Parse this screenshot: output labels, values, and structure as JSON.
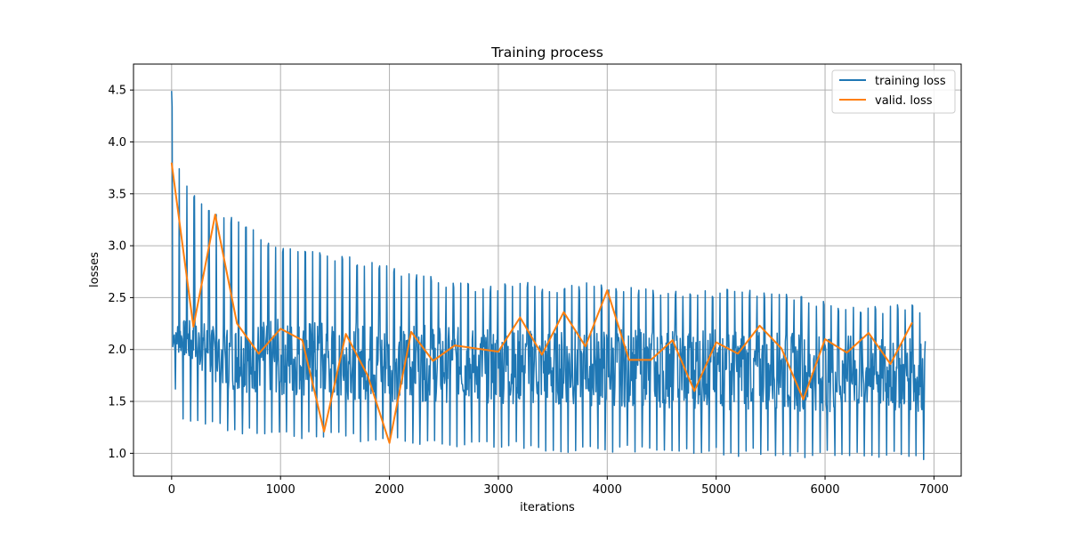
{
  "chart_data": {
    "type": "line",
    "title": "Training process",
    "xlabel": "iterations",
    "ylabel": "losses",
    "xlim": [
      -350,
      7250
    ],
    "ylim": [
      0.78,
      4.75
    ],
    "x_ticks": [
      0,
      1000,
      2000,
      3000,
      4000,
      5000,
      6000,
      7000
    ],
    "x_tick_labels": [
      "0",
      "1000",
      "2000",
      "3000",
      "4000",
      "5000",
      "6000",
      "7000"
    ],
    "y_ticks": [
      1.0,
      1.5,
      2.0,
      2.5,
      3.0,
      3.5,
      4.0,
      4.5
    ],
    "y_tick_labels": [
      "1.0",
      "1.5",
      "2.0",
      "2.5",
      "3.0",
      "3.5",
      "4.0",
      "4.5"
    ],
    "grid": true,
    "legend_position": "top-right",
    "series": [
      {
        "name": "training loss",
        "color": "#1f77b4",
        "note_style": "dense oscillation between envelope bounds",
        "upper_envelope": {
          "x": [
            0,
            20,
            100,
            200,
            300,
            400,
            500,
            600,
            700,
            800,
            900,
            1000,
            1200,
            1400,
            1600,
            1800,
            2000,
            2200,
            2400,
            2600,
            2800,
            3000,
            3200,
            3400,
            3600,
            3800,
            4000,
            4200,
            4400,
            4600,
            4800,
            5000,
            5200,
            5400,
            5600,
            5800,
            6000,
            6200,
            6400,
            6600,
            6800,
            6920
          ],
          "values": [
            4.53,
            3.95,
            3.68,
            3.5,
            3.38,
            3.33,
            3.3,
            3.28,
            3.2,
            3.12,
            3.07,
            3.02,
            2.97,
            2.95,
            2.9,
            2.85,
            2.82,
            2.75,
            2.7,
            2.66,
            2.63,
            2.63,
            2.67,
            2.62,
            2.63,
            2.65,
            2.64,
            2.6,
            2.58,
            2.56,
            2.57,
            2.58,
            2.6,
            2.55,
            2.55,
            2.52,
            2.46,
            2.41,
            2.42,
            2.43,
            2.44,
            2.4
          ]
        },
        "lower_envelope": {
          "x": [
            0,
            20,
            100,
            200,
            300,
            400,
            500,
            600,
            700,
            800,
            900,
            1000,
            1200,
            1400,
            1600,
            1800,
            2000,
            2200,
            2400,
            2600,
            2800,
            3000,
            3200,
            3400,
            3600,
            3800,
            4000,
            4200,
            4400,
            4600,
            4800,
            5000,
            5200,
            5400,
            5600,
            5800,
            6000,
            6200,
            6400,
            6600,
            6800,
            6920
          ],
          "values": [
            2.3,
            1.6,
            1.33,
            1.28,
            1.25,
            1.22,
            1.2,
            1.18,
            1.17,
            1.16,
            1.15,
            1.15,
            1.14,
            1.13,
            1.12,
            1.1,
            1.09,
            1.08,
            1.07,
            1.06,
            1.06,
            1.05,
            1.04,
            1.0,
            0.99,
            0.99,
            1.0,
            1.0,
            0.99,
            0.98,
            0.98,
            0.98,
            0.97,
            0.97,
            0.96,
            0.96,
            0.95,
            0.95,
            0.94,
            0.94,
            0.94,
            0.93
          ]
        },
        "mid_band": {
          "x": [
            0,
            500,
            1000,
            2000,
            3000,
            4000,
            5000,
            6000,
            6920
          ],
          "upper": [
            2.3,
            2.25,
            2.3,
            2.25,
            2.2,
            2.2,
            2.2,
            2.15,
            2.1
          ],
          "lower": [
            2.0,
            1.6,
            1.55,
            1.5,
            1.48,
            1.45,
            1.42,
            1.4,
            1.4
          ]
        }
      },
      {
        "name": "valid. loss",
        "color": "#ff7f0e",
        "x": [
          0,
          200,
          400,
          600,
          800,
          1000,
          1200,
          1400,
          1600,
          1800,
          2000,
          2200,
          2400,
          2600,
          2800,
          3000,
          3200,
          3400,
          3600,
          3800,
          4000,
          4200,
          4400,
          4600,
          4800,
          5000,
          5200,
          5400,
          5600,
          5800,
          6000,
          6200,
          6400,
          6600,
          6800
        ],
        "values": [
          3.8,
          2.22,
          3.3,
          2.25,
          1.96,
          2.2,
          2.09,
          1.21,
          2.15,
          1.75,
          1.1,
          2.17,
          1.89,
          2.04,
          2.01,
          1.98,
          2.31,
          1.95,
          2.36,
          2.03,
          2.57,
          1.9,
          1.9,
          2.09,
          1.6,
          2.07,
          1.96,
          2.23,
          2.01,
          1.52,
          2.1,
          1.97,
          2.16,
          1.86,
          2.26
        ]
      }
    ]
  }
}
